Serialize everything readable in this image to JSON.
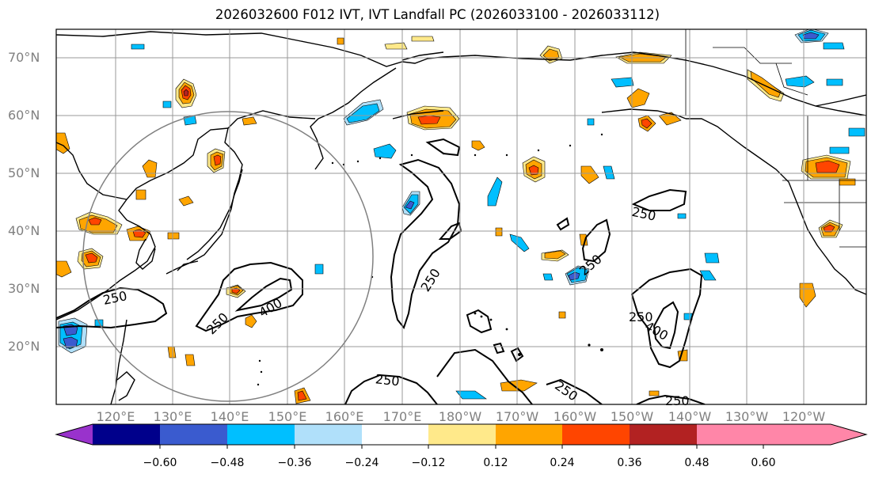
{
  "title": "2026032600 F012 IVT, IVT Landfall PC (2026033100 - 2026033112)",
  "lat_labels": [
    "70°N",
    "60°N",
    "50°N",
    "40°N",
    "30°N",
    "20°N"
  ],
  "lon_labels": [
    "120°E",
    "130°E",
    "140°E",
    "150°E",
    "160°E",
    "170°E",
    "180°W",
    "170°W",
    "160°W",
    "150°W",
    "140°W",
    "130°W",
    "120°W"
  ],
  "contour_labels": [
    "250",
    "250",
    "400",
    "250",
    "250",
    "250",
    "250",
    "400",
    "250",
    "250",
    "250"
  ],
  "colorbar": {
    "ticks": [
      "−0.60",
      "−0.48",
      "−0.36",
      "−0.24",
      "−0.12",
      "0.12",
      "0.24",
      "0.36",
      "0.48",
      "0.60"
    ],
    "colors": [
      "#9932cc",
      "#00008b",
      "#3a5bcf",
      "#00bfff",
      "#b0e0fa",
      "#ffffff",
      "#ffe98a",
      "#ffa500",
      "#ff4500",
      "#b22222",
      "#ff86a8",
      "#ff86a8"
    ]
  },
  "colors": {
    "positive_low": "#ffe98a",
    "positive_mid": "#ffa500",
    "positive_high": "#ff4500",
    "positive_top": "#b22222",
    "negative_low": "#b0e0fa",
    "negative_mid": "#00bfff",
    "negative_high": "#3a5bcf",
    "contour": "#000000",
    "grid": "#999999",
    "circle": "#808080"
  }
}
